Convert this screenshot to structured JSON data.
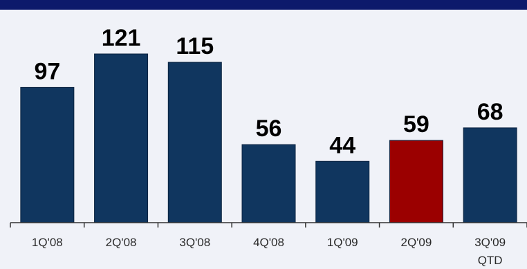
{
  "chart_data": {
    "type": "bar",
    "categories": [
      "1Q'08",
      "2Q'08",
      "3Q'08",
      "4Q'08",
      "1Q'09",
      "2Q'09",
      "3Q'09"
    ],
    "category_sublabels": [
      "",
      "",
      "",
      "",
      "",
      "",
      "QTD"
    ],
    "values": [
      97,
      121,
      115,
      56,
      44,
      59,
      68
    ],
    "value_labels": [
      "97",
      "121",
      "115",
      "56",
      "44",
      "59",
      "68"
    ],
    "highlight_index": 5,
    "ylim": [
      0,
      121
    ],
    "grid": false,
    "colors": {
      "bar": "#10365f",
      "highlight": "#9b0000",
      "background": "#f0f2f8",
      "top_rule": "#0d1a6b",
      "axis": "#333333",
      "label_text": "#000000",
      "tick_text": "#2a2a2a"
    }
  }
}
